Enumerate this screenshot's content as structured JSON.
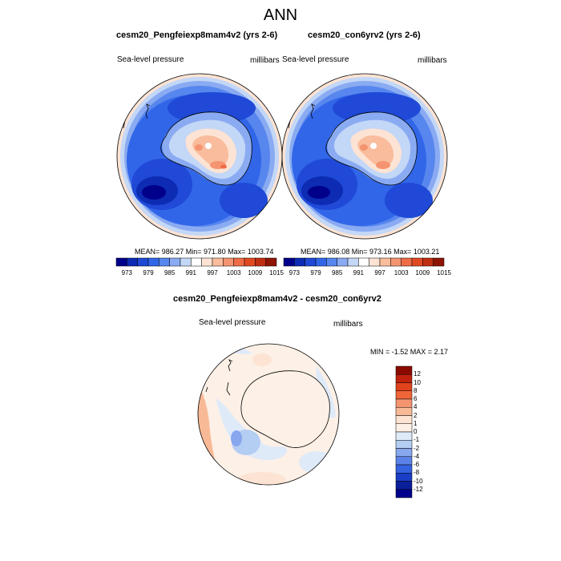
{
  "page_title": "ANN",
  "panels": [
    {
      "title": "cesm20_Pengfeiexp8mam4v2 (yrs 2-6)",
      "left_label": "Sea-level pressure",
      "right_label": "millibars",
      "stats": "MEAN= 986.27  Min= 971.80  Max= 1003.74"
    },
    {
      "title": "cesm20_con6yrv2 (yrs 2-6)",
      "left_label": "Sea-level pressure",
      "right_label": "millibars",
      "stats": "MEAN= 986.08  Min= 973.16  Max= 1003.21"
    }
  ],
  "abs_colorbar": {
    "labels": [
      "973",
      "979",
      "985",
      "991",
      "997",
      "1003",
      "1009",
      "1015"
    ],
    "colors": [
      "#00008b",
      "#0d2bb3",
      "#1f49d6",
      "#3166e8",
      "#5786ee",
      "#8aabf2",
      "#c3d7f7",
      "#ffffff",
      "#fde3d3",
      "#f9bc9c",
      "#f59470",
      "#ef6c47",
      "#e04a23",
      "#c02e12",
      "#8e1405"
    ]
  },
  "diff_panel": {
    "title": "cesm20_Pengfeiexp8mam4v2 - cesm20_con6yrv2",
    "left_label": "Sea-level pressure",
    "right_label": "millibars",
    "stats": "MIN =  -1.52 MAX =   2.17"
  },
  "diff_colorbar": {
    "labels": [
      "12",
      "10",
      "8",
      "6",
      "4",
      "2",
      "1",
      "0",
      "-1",
      "-2",
      "-4",
      "-6",
      "-8",
      "-10",
      "-12"
    ],
    "colors": [
      "#8b0a00",
      "#c0220e",
      "#e0421c",
      "#ef6538",
      "#f59470",
      "#f8b996",
      "#fde3d3",
      "#fdf0e6",
      "#dfeaf9",
      "#b4cdf3",
      "#87a7ee",
      "#5a82e8",
      "#3462e0",
      "#1a3dc5",
      "#0a1f9a",
      "#00008b"
    ]
  }
}
